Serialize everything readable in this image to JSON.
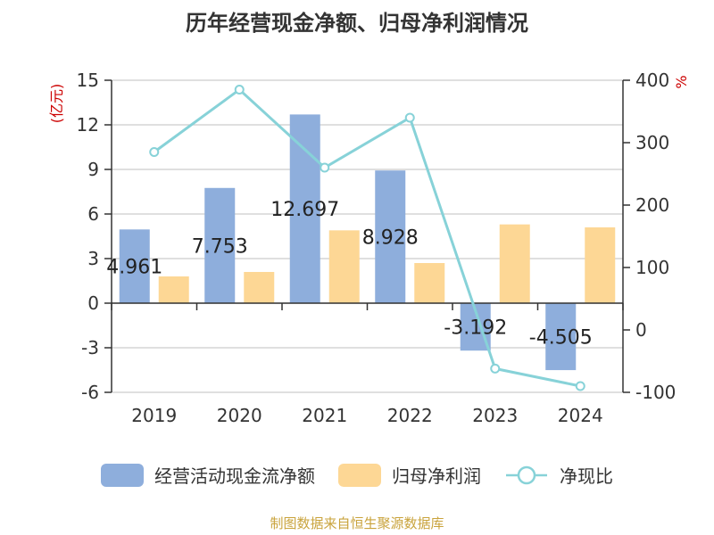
{
  "chart_data": {
    "type": "bar",
    "title": "历年经营现金净额、归母净利润情况",
    "categories": [
      "2019",
      "2020",
      "2021",
      "2022",
      "2023",
      "2024"
    ],
    "ylabel_left": "(亿元)",
    "ylabel_right": "%",
    "ylim_left": [
      -6,
      15
    ],
    "yticks_left": [
      -6,
      -3,
      0,
      3,
      6,
      9,
      12,
      15
    ],
    "ylim_right": [
      -100,
      400
    ],
    "yticks_right": [
      -100,
      0,
      100,
      200,
      300,
      400
    ],
    "grid": true,
    "legend_position": "bottom",
    "series": [
      {
        "name": "经营活动现金流净额",
        "kind": "bar",
        "axis": "left",
        "color": "#8eaedc",
        "values": [
          4.961,
          7.753,
          12.697,
          8.928,
          -3.192,
          -4.505
        ],
        "labels": [
          "4.961",
          "7.753",
          "12.697",
          "8.928",
          "-3.192",
          "-4.505"
        ]
      },
      {
        "name": "归母净利润",
        "kind": "bar",
        "axis": "left",
        "color": "#fdd795",
        "values": [
          1.8,
          2.1,
          4.9,
          2.7,
          5.3,
          5.1
        ]
      },
      {
        "name": "净现比",
        "kind": "line",
        "axis": "right",
        "color": "#87d2d8",
        "values": [
          285,
          385,
          260,
          340,
          -62,
          -90
        ]
      }
    ]
  },
  "source": "制图数据来自恒生聚源数据库"
}
